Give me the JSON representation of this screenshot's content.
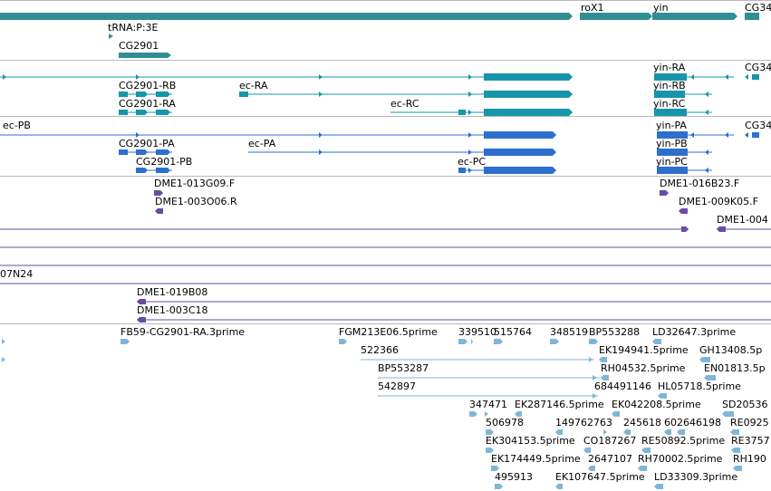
{
  "colors": {
    "gene": "#2f8f93",
    "transcript_a": "#1795ab",
    "transcript_b": "#2d6fcf",
    "clone": "#6a4aa4",
    "est": "#7fb6d8",
    "separator": "#b8b8b8"
  },
  "tracks": {
    "genes": {
      "labels": [
        "roX1",
        "yin",
        "CG34",
        "tRNA:P:3E",
        "CG2901"
      ]
    },
    "transcripts_a": {
      "labels": [
        "yin-RA",
        "CG34",
        "CG2901-RB",
        "ec-RA",
        "yin-RB",
        "CG2901-RA",
        "ec-RC",
        "yin-RC"
      ]
    },
    "transcripts_b": {
      "labels": [
        "ec-PB",
        "yin-PA",
        "CG34",
        "CG2901-PA",
        "ec-PA",
        "yin-PB",
        "CG2901-PB",
        "ec-PC",
        "yin-PC"
      ]
    },
    "clones": {
      "labels": [
        "DME1-013G09.F",
        "DME1-016B23.F",
        "DME1-003O06.R",
        "DME1-009K05.F",
        "DME1-004",
        "07N24",
        "DME1-019B08",
        "DME1-003C18"
      ]
    },
    "ests": {
      "labels": [
        "FB59-CG2901-RA.3prime",
        "FGM213E06.5prime",
        "339510",
        "515764",
        "348519",
        "BP553288",
        "LD32647.3prime",
        "522366",
        "EK194941.5prime",
        "GH13408.5p",
        "BP553287",
        "RH04532.5prime",
        "EN01813.5p",
        "542897",
        "684491146",
        "HL05718.5prime",
        "347471",
        "EK287146.5prime",
        "EK042208.5prime",
        "SD20536",
        "506978",
        "149762763",
        "245618",
        "60",
        "2646198",
        "RE0925",
        "EK304153.5prime",
        "CO187267",
        "RE50892.5prime",
        "RE3757",
        "EK174449.5prime",
        "2647107",
        "RH70002.5prime",
        "RH190",
        "495913",
        "EK107647.5prime",
        "LD33309.3prime"
      ]
    }
  }
}
